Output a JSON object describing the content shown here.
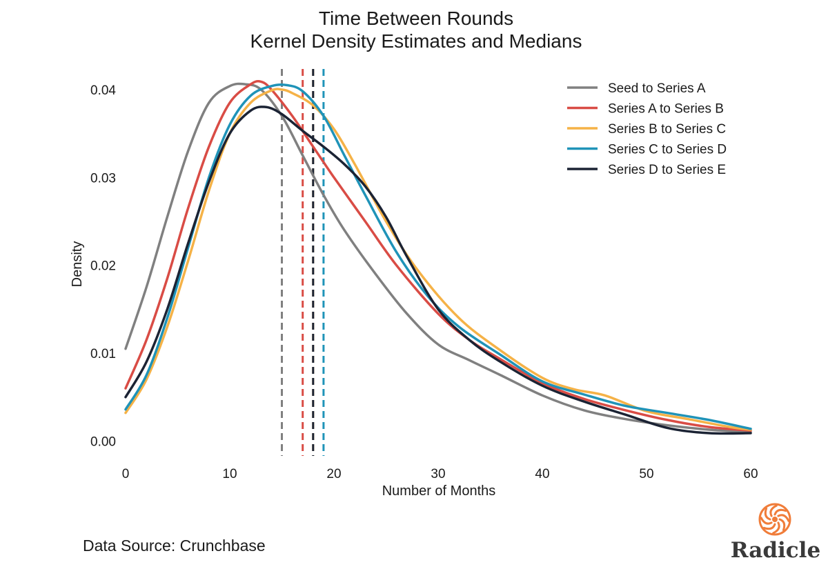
{
  "chart_data": {
    "type": "line",
    "title": [
      "Time Between Rounds",
      "Kernel Density Estimates and Medians"
    ],
    "xlabel": "Number of Months",
    "ylabel": "Density",
    "xlim": [
      0,
      60
    ],
    "ylim": [
      -0.002,
      0.0425
    ],
    "xticks": [
      0,
      10,
      20,
      30,
      40,
      50,
      60
    ],
    "yticks": [
      0.0,
      0.01,
      0.02,
      0.03,
      0.04
    ],
    "ytick_labels": [
      "0.00",
      "0.01",
      "0.02",
      "0.03",
      "0.04"
    ],
    "grid": false,
    "legend_position": "top-right",
    "series": [
      {
        "name": "Seed to Series A",
        "color": "#808080",
        "median": 15,
        "x": [
          0,
          2,
          4,
          6,
          8,
          10,
          11.5,
          13,
          15,
          17,
          19,
          21,
          24,
          27,
          30,
          33,
          36,
          40,
          44,
          48,
          52,
          56,
          60
        ],
        "y": [
          0.0105,
          0.0175,
          0.0255,
          0.033,
          0.0385,
          0.0404,
          0.0406,
          0.04,
          0.037,
          0.0325,
          0.028,
          0.024,
          0.019,
          0.0145,
          0.011,
          0.0092,
          0.0075,
          0.0052,
          0.0035,
          0.0025,
          0.0018,
          0.0013,
          0.001
        ]
      },
      {
        "name": "Series A to Series B",
        "color": "#d94c45",
        "median": 17,
        "x": [
          0,
          2,
          4,
          6,
          8,
          10,
          12,
          13,
          14,
          16,
          18,
          20,
          23,
          26,
          30,
          33,
          36,
          40,
          44,
          48,
          52,
          56,
          60
        ],
        "y": [
          0.006,
          0.0115,
          0.0185,
          0.0265,
          0.0335,
          0.0385,
          0.0406,
          0.0409,
          0.04,
          0.037,
          0.0335,
          0.03,
          0.025,
          0.02,
          0.0145,
          0.0115,
          0.0093,
          0.0066,
          0.0048,
          0.0035,
          0.0024,
          0.0016,
          0.0012
        ]
      },
      {
        "name": "Series B to Series C",
        "color": "#f5b247",
        "median": 18,
        "x": [
          0,
          2,
          4,
          6,
          8,
          10,
          12,
          14,
          15,
          16,
          18,
          20,
          22,
          25,
          28,
          32,
          36,
          40,
          43,
          46,
          50,
          54,
          58,
          60
        ],
        "y": [
          0.0032,
          0.007,
          0.013,
          0.0205,
          0.0285,
          0.035,
          0.0385,
          0.0399,
          0.04,
          0.0396,
          0.0382,
          0.0355,
          0.0315,
          0.025,
          0.0195,
          0.014,
          0.0103,
          0.0072,
          0.0059,
          0.0052,
          0.0034,
          0.0025,
          0.0016,
          0.0013
        ]
      },
      {
        "name": "Series C to Series D",
        "color": "#1f93b8",
        "median": 19,
        "x": [
          0,
          2,
          4,
          6,
          8,
          10,
          12,
          14,
          15.5,
          17,
          19,
          21,
          23,
          26,
          29,
          32,
          36,
          40,
          44,
          48,
          52,
          56,
          60
        ],
        "y": [
          0.0036,
          0.0075,
          0.014,
          0.022,
          0.03,
          0.036,
          0.0393,
          0.0404,
          0.0405,
          0.0398,
          0.037,
          0.0325,
          0.028,
          0.0215,
          0.0165,
          0.013,
          0.0098,
          0.0068,
          0.0053,
          0.004,
          0.0032,
          0.0024,
          0.0014
        ]
      },
      {
        "name": "Series D to Series E",
        "color": "#1b2334",
        "median": 18,
        "x": [
          0,
          2,
          4,
          6,
          8,
          10,
          12,
          13.5,
          15,
          17,
          19,
          21,
          23,
          25,
          27,
          30,
          33,
          36,
          40,
          44,
          48,
          52,
          56,
          60
        ],
        "y": [
          0.005,
          0.009,
          0.015,
          0.0225,
          0.0295,
          0.035,
          0.0376,
          0.038,
          0.0372,
          0.0353,
          0.0335,
          0.0315,
          0.029,
          0.0255,
          0.021,
          0.015,
          0.0115,
          0.009,
          0.0063,
          0.0045,
          0.003,
          0.0015,
          0.0009,
          0.0009
        ]
      }
    ]
  },
  "footer": {
    "source_text": "Data Source: Crunchbase",
    "logo_text": "Radicle",
    "logo_color": "#f07d3a",
    "logo_icon": "radicle-logo-icon"
  }
}
